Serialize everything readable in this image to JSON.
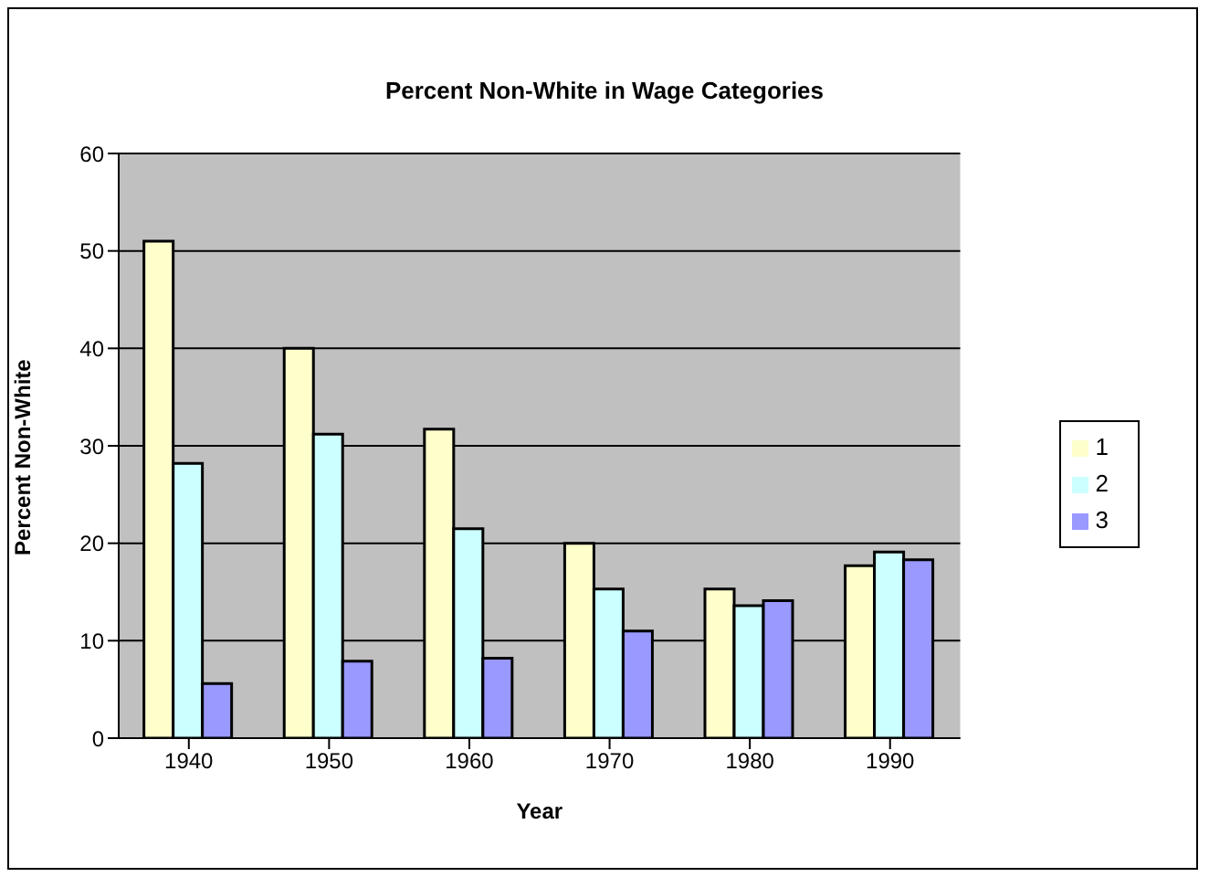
{
  "chart_data": {
    "type": "bar",
    "title": "Percent Non-White in Wage Categories",
    "xlabel": "Year",
    "ylabel": "Percent Non-White",
    "categories": [
      "1940",
      "1950",
      "1960",
      "1970",
      "1980",
      "1990"
    ],
    "series": [
      {
        "name": "1",
        "color": "#ffffcc",
        "values": [
          51,
          40,
          31.7,
          20,
          15.3,
          17.7
        ]
      },
      {
        "name": "2",
        "color": "#ccffff",
        "values": [
          28.2,
          31.2,
          21.5,
          15.3,
          13.6,
          19.1
        ]
      },
      {
        "name": "3",
        "color": "#9999ff",
        "values": [
          5.6,
          7.9,
          8.2,
          11,
          14.1,
          18.3
        ]
      }
    ],
    "ylim": [
      0,
      60
    ],
    "yticks": [
      0,
      10,
      20,
      30,
      40,
      50,
      60
    ],
    "grid": "y",
    "legend": "right"
  }
}
